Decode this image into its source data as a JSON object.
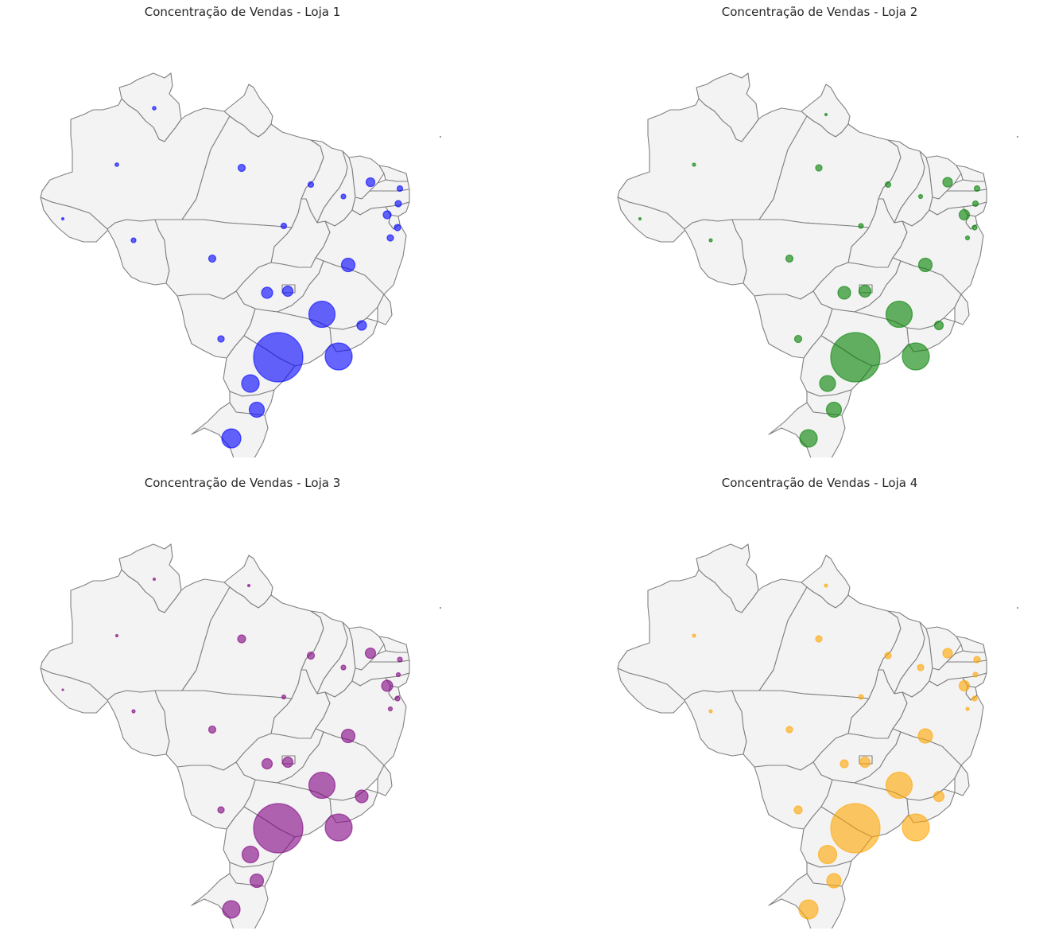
{
  "figure": {
    "panels": [
      {
        "title": "Concentração de Vendas - Loja 1",
        "color": "#0000ff"
      },
      {
        "title": "Concentração de Vendas - Loja 2",
        "color": "#008000"
      },
      {
        "title": "Concentração de Vendas - Loja 3",
        "color": "#800080"
      },
      {
        "title": "Concentração de Vendas - Loja 4",
        "color": "#ffa500"
      }
    ]
  },
  "chart_data": [
    {
      "type": "scatter",
      "title": "Concentração de Vendas - Loja 1",
      "color": "#0000ff",
      "series": [
        {
          "values": [
            {
              "state": "RR",
              "relative_size": 0.45
            },
            {
              "state": "AM",
              "relative_size": 0.45
            },
            {
              "state": "AC",
              "relative_size": 0.3
            },
            {
              "state": "RO",
              "relative_size": 0.6
            },
            {
              "state": "AP",
              "relative_size": 0
            },
            {
              "state": "PA",
              "relative_size": 0.9
            },
            {
              "state": "MA",
              "relative_size": 0.7
            },
            {
              "state": "PI",
              "relative_size": 0.6
            },
            {
              "state": "CE",
              "relative_size": 1.1
            },
            {
              "state": "RN",
              "relative_size": 0.7
            },
            {
              "state": "PB",
              "relative_size": 0.8
            },
            {
              "state": "PE",
              "relative_size": 1.0
            },
            {
              "state": "AL",
              "relative_size": 0.8
            },
            {
              "state": "SE",
              "relative_size": 0.8
            },
            {
              "state": "TO",
              "relative_size": 0.7
            },
            {
              "state": "MT",
              "relative_size": 0.9
            },
            {
              "state": "BA",
              "relative_size": 1.7
            },
            {
              "state": "GO",
              "relative_size": 1.4
            },
            {
              "state": "DF",
              "relative_size": 1.3
            },
            {
              "state": "MG",
              "relative_size": 3.3
            },
            {
              "state": "ES",
              "relative_size": 1.2
            },
            {
              "state": "MS",
              "relative_size": 0.8
            },
            {
              "state": "SP",
              "relative_size": 6.2
            },
            {
              "state": "RJ",
              "relative_size": 3.4
            },
            {
              "state": "PR",
              "relative_size": 2.2
            },
            {
              "state": "SC",
              "relative_size": 1.9
            },
            {
              "state": "RS",
              "relative_size": 2.4
            }
          ]
        }
      ]
    },
    {
      "type": "scatter",
      "title": "Concentração de Vendas - Loja 2",
      "color": "#008000",
      "series": [
        {
          "values": [
            {
              "state": "RR",
              "relative_size": 0
            },
            {
              "state": "AM",
              "relative_size": 0.4
            },
            {
              "state": "AC",
              "relative_size": 0.3
            },
            {
              "state": "RO",
              "relative_size": 0.4
            },
            {
              "state": "AP",
              "relative_size": 0.3
            },
            {
              "state": "PA",
              "relative_size": 0.8
            },
            {
              "state": "MA",
              "relative_size": 0.7
            },
            {
              "state": "PI",
              "relative_size": 0.5
            },
            {
              "state": "CE",
              "relative_size": 1.2
            },
            {
              "state": "RN",
              "relative_size": 0.7
            },
            {
              "state": "PB",
              "relative_size": 0.7
            },
            {
              "state": "PE",
              "relative_size": 1.3
            },
            {
              "state": "AL",
              "relative_size": 0.6
            },
            {
              "state": "SE",
              "relative_size": 0.5
            },
            {
              "state": "TO",
              "relative_size": 0.6
            },
            {
              "state": "MT",
              "relative_size": 0.9
            },
            {
              "state": "BA",
              "relative_size": 1.7
            },
            {
              "state": "GO",
              "relative_size": 1.6
            },
            {
              "state": "DF",
              "relative_size": 1.5
            },
            {
              "state": "MG",
              "relative_size": 3.3
            },
            {
              "state": "ES",
              "relative_size": 1.1
            },
            {
              "state": "MS",
              "relative_size": 0.9
            },
            {
              "state": "SP",
              "relative_size": 6.2
            },
            {
              "state": "RJ",
              "relative_size": 3.4
            },
            {
              "state": "PR",
              "relative_size": 2.0
            },
            {
              "state": "SC",
              "relative_size": 1.9
            },
            {
              "state": "RS",
              "relative_size": 2.2
            }
          ]
        }
      ]
    },
    {
      "type": "scatter",
      "title": "Concentração de Vendas - Loja 3",
      "color": "#800080",
      "series": [
        {
          "values": [
            {
              "state": "RR",
              "relative_size": 0.3
            },
            {
              "state": "AM",
              "relative_size": 0.3
            },
            {
              "state": "AC",
              "relative_size": 0.2
            },
            {
              "state": "RO",
              "relative_size": 0.4
            },
            {
              "state": "AP",
              "relative_size": 0.3
            },
            {
              "state": "PA",
              "relative_size": 1.0
            },
            {
              "state": "MA",
              "relative_size": 0.9
            },
            {
              "state": "PI",
              "relative_size": 0.6
            },
            {
              "state": "CE",
              "relative_size": 1.3
            },
            {
              "state": "RN",
              "relative_size": 0.6
            },
            {
              "state": "PB",
              "relative_size": 0.5
            },
            {
              "state": "PE",
              "relative_size": 1.4
            },
            {
              "state": "AL",
              "relative_size": 0.6
            },
            {
              "state": "SE",
              "relative_size": 0.5
            },
            {
              "state": "TO",
              "relative_size": 0.5
            },
            {
              "state": "MT",
              "relative_size": 0.9
            },
            {
              "state": "BA",
              "relative_size": 1.7
            },
            {
              "state": "GO",
              "relative_size": 1.3
            },
            {
              "state": "DF",
              "relative_size": 1.3
            },
            {
              "state": "MG",
              "relative_size": 3.3
            },
            {
              "state": "ES",
              "relative_size": 1.6
            },
            {
              "state": "MS",
              "relative_size": 0.8
            },
            {
              "state": "SP",
              "relative_size": 6.2
            },
            {
              "state": "RJ",
              "relative_size": 3.4
            },
            {
              "state": "PR",
              "relative_size": 2.1
            },
            {
              "state": "SC",
              "relative_size": 1.7
            },
            {
              "state": "RS",
              "relative_size": 2.2
            }
          ]
        }
      ]
    },
    {
      "type": "scatter",
      "title": "Concentração de Vendas - Loja 4",
      "color": "#ffa500",
      "series": [
        {
          "values": [
            {
              "state": "RR",
              "relative_size": 0
            },
            {
              "state": "AM",
              "relative_size": 0.4
            },
            {
              "state": "AC",
              "relative_size": 0
            },
            {
              "state": "RO",
              "relative_size": 0.4
            },
            {
              "state": "AP",
              "relative_size": 0.4
            },
            {
              "state": "PA",
              "relative_size": 0.8
            },
            {
              "state": "MA",
              "relative_size": 0.8
            },
            {
              "state": "PI",
              "relative_size": 0.8
            },
            {
              "state": "CE",
              "relative_size": 1.2
            },
            {
              "state": "RN",
              "relative_size": 0.8
            },
            {
              "state": "PB",
              "relative_size": 0.6
            },
            {
              "state": "PE",
              "relative_size": 1.3
            },
            {
              "state": "AL",
              "relative_size": 0.6
            },
            {
              "state": "SE",
              "relative_size": 0.4
            },
            {
              "state": "TO",
              "relative_size": 0.6
            },
            {
              "state": "MT",
              "relative_size": 0.8
            },
            {
              "state": "BA",
              "relative_size": 1.8
            },
            {
              "state": "GO",
              "relative_size": 1.0
            },
            {
              "state": "DF",
              "relative_size": 1.3
            },
            {
              "state": "MG",
              "relative_size": 3.3
            },
            {
              "state": "ES",
              "relative_size": 1.3
            },
            {
              "state": "MS",
              "relative_size": 1.0
            },
            {
              "state": "SP",
              "relative_size": 6.2
            },
            {
              "state": "RJ",
              "relative_size": 3.4
            },
            {
              "state": "PR",
              "relative_size": 2.3
            },
            {
              "state": "SC",
              "relative_size": 1.8
            },
            {
              "state": "RS",
              "relative_size": 2.4
            }
          ]
        }
      ]
    }
  ]
}
